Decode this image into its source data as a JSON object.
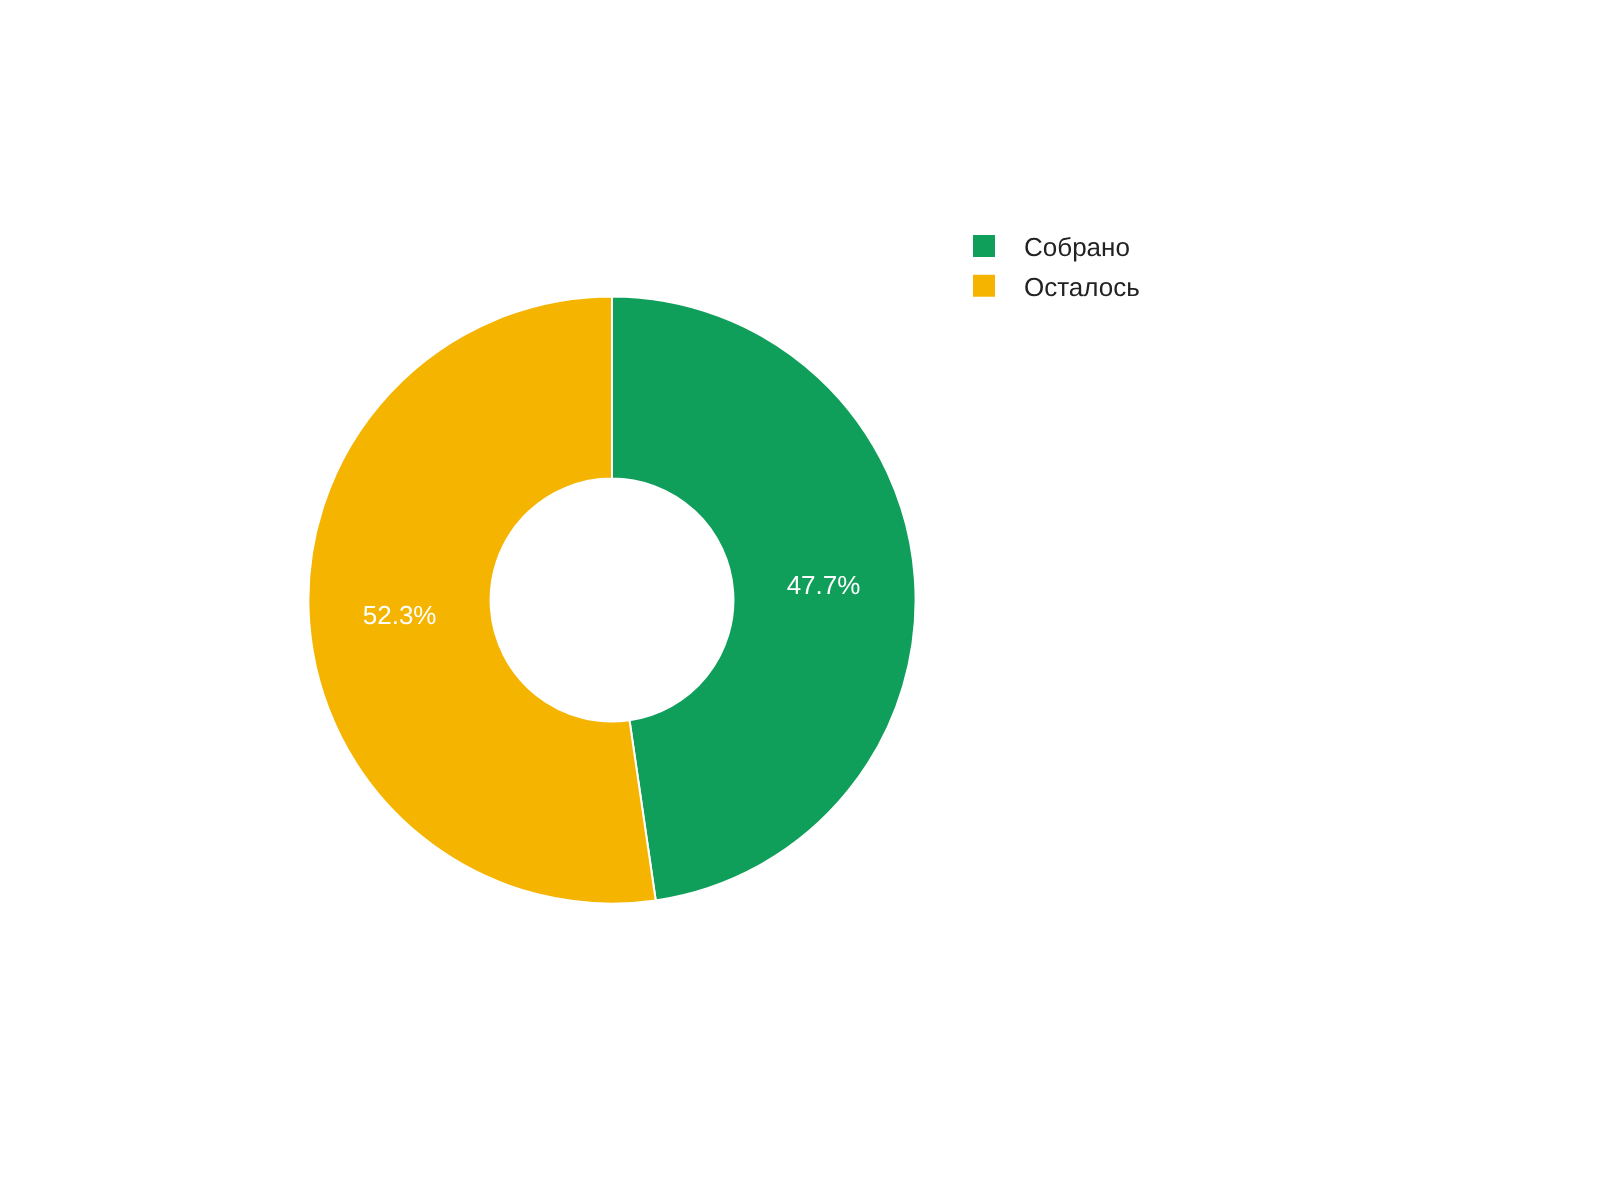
{
  "chart_data": {
    "type": "donut",
    "categories": [
      "Собрано",
      "Осталось"
    ],
    "values": [
      47.7,
      52.3
    ],
    "colors": [
      "#109f5a",
      "#f4b400"
    ],
    "value_labels": [
      "47.7%",
      "52.3%"
    ],
    "legend": "top right"
  }
}
